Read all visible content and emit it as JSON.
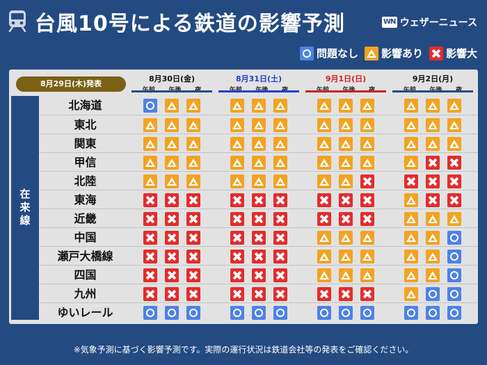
{
  "header": {
    "title": "台風10号による鉄道の影響予測",
    "brand": "ウェザーニュース",
    "brand_logo_text": "WN",
    "icon": "train-icon"
  },
  "legend": [
    {
      "symbol": "circle",
      "label": "問題なし",
      "color": "#4d82e6"
    },
    {
      "symbol": "tri",
      "label": "影響あり",
      "color": "#f2a322"
    },
    {
      "symbol": "cross",
      "label": "影響大",
      "color": "#e32c2c"
    }
  ],
  "table": {
    "issued": "8月29日(木)発表",
    "category": "在来線",
    "periods": [
      "午前",
      "午後",
      "夜"
    ],
    "days": [
      {
        "label": "8月30日(金)",
        "color": "#111111",
        "line_color": "#244a82"
      },
      {
        "label": "8月31日(土)",
        "color": "#1f3fd0",
        "line_color": "#1f3fd0"
      },
      {
        "label": "9月1日(日)",
        "color": "#d02020",
        "line_color": "#d02020"
      },
      {
        "label": "9月2日(月)",
        "color": "#111111",
        "line_color": "#244a82"
      }
    ],
    "rows": [
      {
        "name": "北海道",
        "values": [
          "O",
          "T",
          "T",
          "T",
          "T",
          "T",
          "T",
          "T",
          "T",
          "T",
          "T",
          "T"
        ]
      },
      {
        "name": "東北",
        "values": [
          "T",
          "T",
          "T",
          "T",
          "T",
          "T",
          "T",
          "T",
          "T",
          "T",
          "T",
          "T"
        ]
      },
      {
        "name": "関東",
        "values": [
          "T",
          "T",
          "T",
          "T",
          "T",
          "T",
          "T",
          "T",
          "T",
          "T",
          "T",
          "T"
        ]
      },
      {
        "name": "甲信",
        "values": [
          "T",
          "T",
          "T",
          "T",
          "T",
          "T",
          "T",
          "T",
          "T",
          "T",
          "X",
          "X"
        ]
      },
      {
        "name": "北陸",
        "values": [
          "T",
          "T",
          "T",
          "T",
          "T",
          "T",
          "T",
          "T",
          "X",
          "X",
          "X",
          "X"
        ]
      },
      {
        "name": "東海",
        "values": [
          "X",
          "X",
          "X",
          "X",
          "X",
          "X",
          "X",
          "X",
          "X",
          "T",
          "X",
          "X"
        ]
      },
      {
        "name": "近畿",
        "values": [
          "X",
          "X",
          "X",
          "X",
          "X",
          "X",
          "X",
          "X",
          "X",
          "T",
          "T",
          "T"
        ]
      },
      {
        "name": "中国",
        "values": [
          "X",
          "X",
          "X",
          "X",
          "X",
          "X",
          "T",
          "T",
          "T",
          "T",
          "T",
          "O"
        ]
      },
      {
        "name": "瀬戸大橋線",
        "values": [
          "X",
          "X",
          "X",
          "X",
          "X",
          "X",
          "T",
          "T",
          "T",
          "T",
          "T",
          "O"
        ]
      },
      {
        "name": "四国",
        "values": [
          "X",
          "X",
          "X",
          "X",
          "X",
          "X",
          "T",
          "T",
          "T",
          "T",
          "T",
          "O"
        ]
      },
      {
        "name": "九州",
        "values": [
          "X",
          "X",
          "X",
          "X",
          "X",
          "X",
          "X",
          "X",
          "X",
          "T",
          "O",
          "O"
        ]
      },
      {
        "name": "ゆいレール",
        "values": [
          "O",
          "O",
          "O",
          "O",
          "O",
          "O",
          "O",
          "O",
          "O",
          "O",
          "O",
          "O"
        ]
      }
    ]
  },
  "footnote": "※気象予測に基づく影響予測です。実際の運行状況は鉄道会社等の発表をご確認ください。"
}
